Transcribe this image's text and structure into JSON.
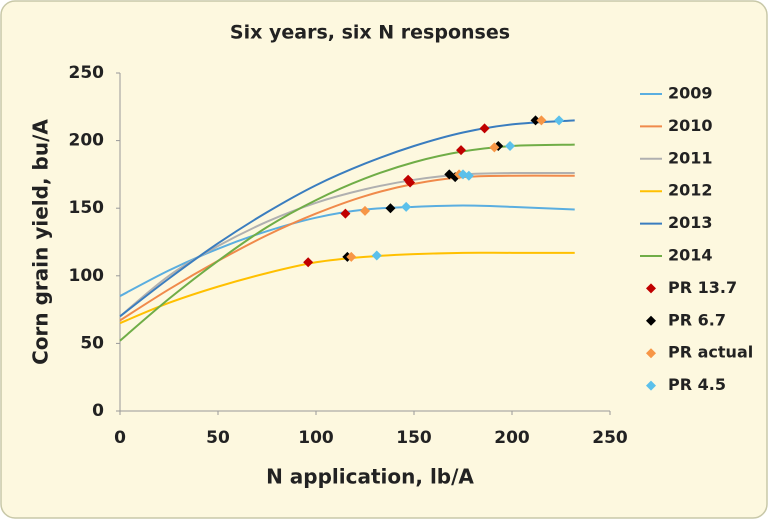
{
  "chart_data": {
    "type": "line",
    "title": "Six years, six N responses",
    "xlabel": "N application, lb/A",
    "ylabel": "Corn grain yield, bu/A",
    "xlim": [
      0,
      250
    ],
    "ylim": [
      0,
      250
    ],
    "xticks": [
      0,
      50,
      100,
      150,
      200,
      250
    ],
    "yticks": [
      0,
      50,
      100,
      150,
      200,
      250
    ],
    "grid": false,
    "legend": "right",
    "x": [
      0,
      25,
      50,
      75,
      100,
      125,
      150,
      175,
      200,
      232
    ],
    "series": [
      {
        "name": "2009",
        "color": "#5aaee0",
        "values": [
          85,
          104,
          120,
          133,
          143,
          149,
          151,
          152,
          151,
          149
        ]
      },
      {
        "name": "2010",
        "color": "#f08a4b",
        "values": [
          67,
          90,
          111,
          130,
          146,
          159,
          168,
          173,
          174,
          174
        ]
      },
      {
        "name": "2011",
        "color": "#b0b0b0",
        "values": [
          70,
          100,
          122,
          140,
          154,
          164,
          171,
          175,
          176,
          176
        ]
      },
      {
        "name": "2012",
        "color": "#ffc000",
        "values": [
          65,
          80,
          92,
          102,
          110,
          114,
          116,
          117,
          117,
          117
        ]
      },
      {
        "name": "2013",
        "color": "#3a7dbf",
        "values": [
          70,
          98,
          124,
          147,
          167,
          183,
          196,
          206,
          212,
          215
        ]
      },
      {
        "name": "2014",
        "color": "#70ad47",
        "values": [
          52,
          83,
          111,
          136,
          156,
          172,
          184,
          192,
          196,
          197
        ]
      }
    ],
    "marker_series": [
      {
        "name": "PR 13.7",
        "color": "#c00000",
        "x": [
          96,
          115,
          147,
          148,
          174,
          186
        ],
        "values": [
          110,
          146,
          171,
          169,
          193,
          209
        ]
      },
      {
        "name": "PR 6.7",
        "color": "#000000",
        "x": [
          116,
          138,
          168,
          171,
          193,
          212
        ],
        "values": [
          114,
          150,
          175,
          173,
          196,
          215
        ]
      },
      {
        "name": "PR actual",
        "color": "#f79646",
        "x": [
          118,
          125,
          173,
          191,
          215
        ],
        "values": [
          114,
          148,
          175,
          195,
          215
        ]
      },
      {
        "name": "PR 4.5",
        "color": "#5bc0eb",
        "x": [
          131,
          146,
          175,
          178,
          199,
          224
        ],
        "values": [
          115,
          151,
          175,
          174,
          196,
          215
        ]
      }
    ]
  }
}
